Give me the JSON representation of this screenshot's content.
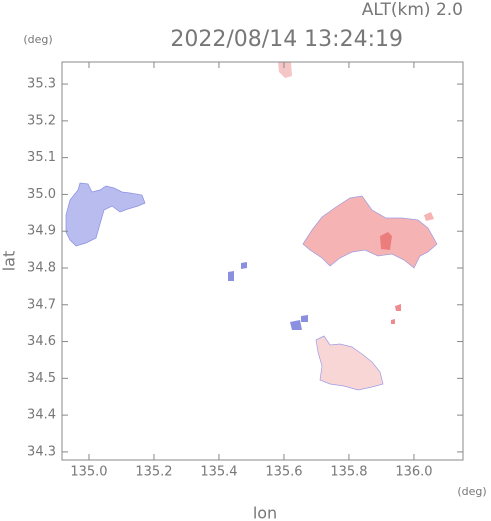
{
  "chart_data": {
    "type": "map",
    "title": "2022/08/14 13:24:19",
    "annotation": "ALT(km) 2.0",
    "xlabel": "lon",
    "ylabel": "lat",
    "x_unit": "(deg)",
    "y_unit": "(deg)",
    "xlim": [
      134.917,
      136.151
    ],
    "ylim": [
      34.278,
      35.36
    ],
    "xticks": [
      {
        "value": 135,
        "label": "135.0"
      },
      135.2,
      135.4,
      135.6,
      135.8,
      {
        "value": 136,
        "label": "136.0"
      }
    ],
    "yticks": [
      34.3,
      34.4,
      34.5,
      34.6,
      34.7,
      34.8,
      34.9,
      {
        "value": 35,
        "label": "35.0"
      },
      35.1,
      35.2,
      35.3
    ]
  }
}
